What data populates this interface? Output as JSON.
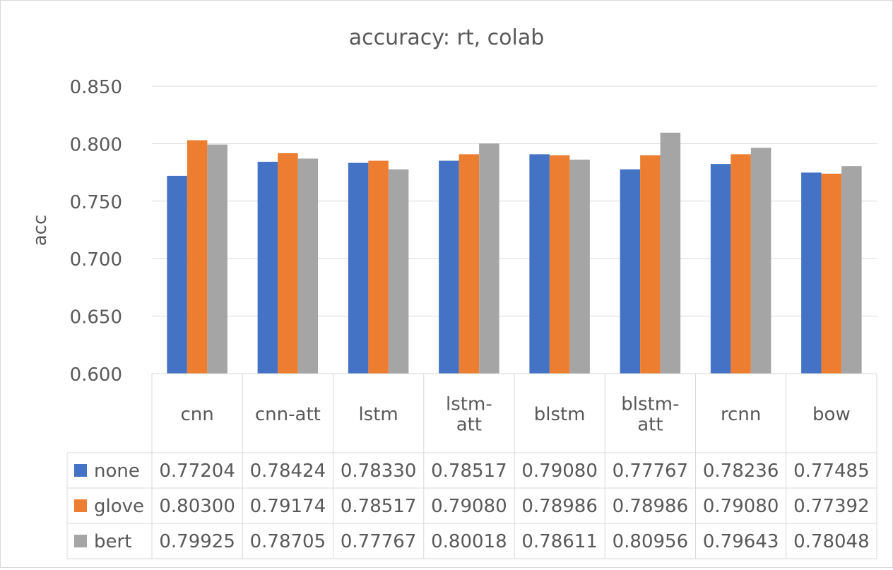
{
  "chart_data": {
    "type": "bar",
    "title": "accuracy: rt, colab",
    "xlabel": "",
    "ylabel": "acc",
    "ylim": [
      0.6,
      0.85
    ],
    "yticks": [
      "0.600",
      "0.650",
      "0.700",
      "0.750",
      "0.800",
      "0.850"
    ],
    "categories": [
      "cnn",
      "cnn-att",
      "lstm",
      "lstm-att",
      "blstm",
      "blstm-att",
      "rcnn",
      "bow"
    ],
    "category_lines": [
      [
        "cnn"
      ],
      [
        "cnn-att"
      ],
      [
        "lstm"
      ],
      [
        "lstm-",
        "att"
      ],
      [
        "blstm"
      ],
      [
        "blstm-",
        "att"
      ],
      [
        "rcnn"
      ],
      [
        "bow"
      ]
    ],
    "series": [
      {
        "name": "none",
        "color": "#4472c4",
        "values": [
          0.77204,
          0.78424,
          0.7833,
          0.78517,
          0.7908,
          0.77767,
          0.78236,
          0.77485
        ],
        "labels": [
          "0.77204",
          "0.78424",
          "0.78330",
          "0.78517",
          "0.79080",
          "0.77767",
          "0.78236",
          "0.77485"
        ]
      },
      {
        "name": "glove",
        "color": "#ed7d31",
        "values": [
          0.803,
          0.79174,
          0.78517,
          0.7908,
          0.78986,
          0.78986,
          0.7908,
          0.77392
        ],
        "labels": [
          "0.80300",
          "0.79174",
          "0.78517",
          "0.79080",
          "0.78986",
          "0.78986",
          "0.79080",
          "0.77392"
        ]
      },
      {
        "name": "bert",
        "color": "#a5a5a5",
        "values": [
          0.79925,
          0.78705,
          0.77767,
          0.80018,
          0.78611,
          0.80956,
          0.79643,
          0.78048
        ],
        "labels": [
          "0.79925",
          "0.78705",
          "0.77767",
          "0.80018",
          "0.78611",
          "0.80956",
          "0.79643",
          "0.78048"
        ]
      }
    ],
    "grid": true,
    "legend": "data-table-left",
    "data_table": true
  }
}
